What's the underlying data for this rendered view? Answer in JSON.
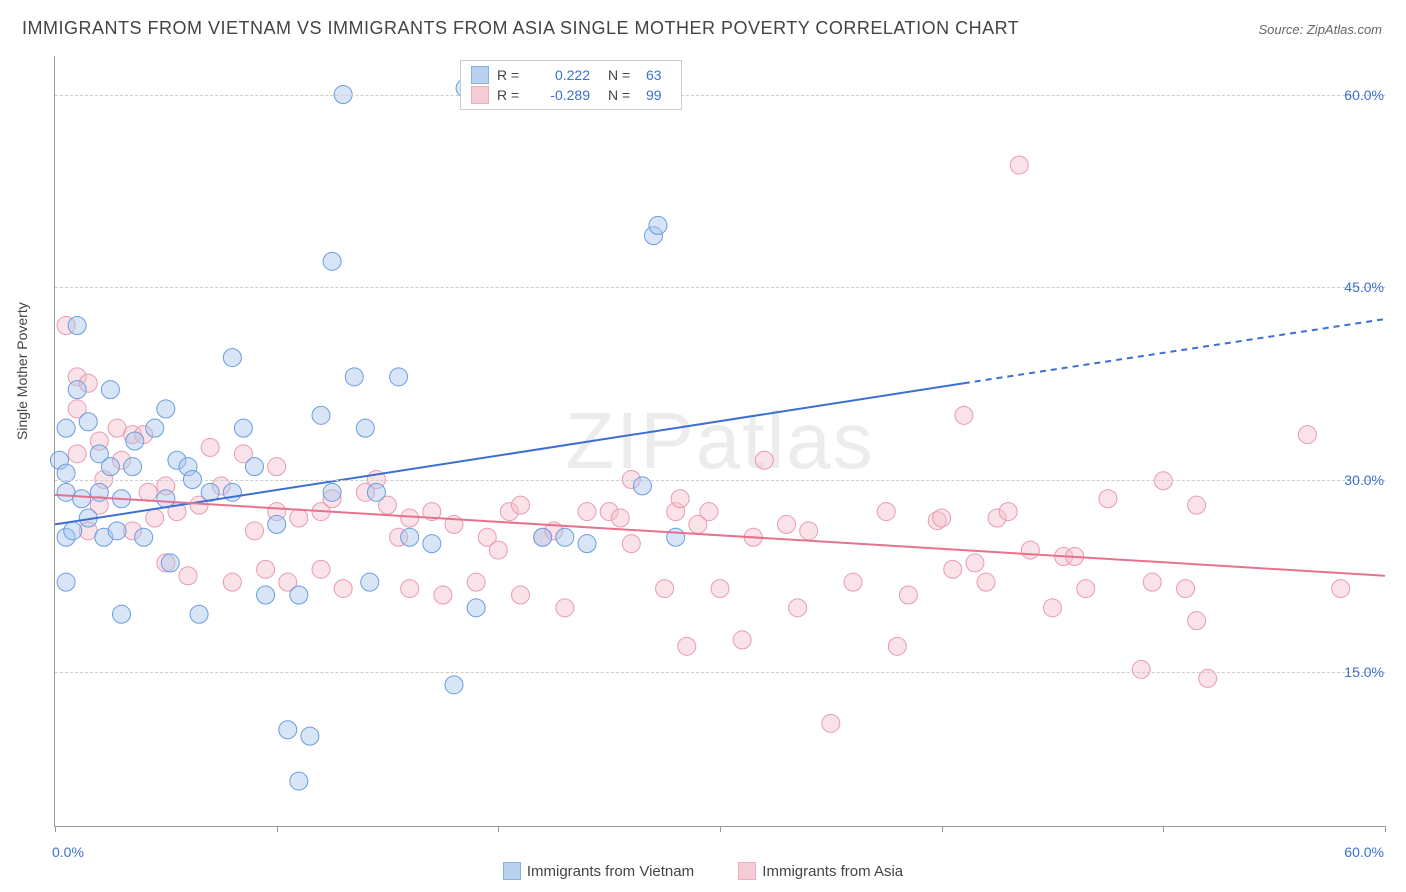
{
  "title": "IMMIGRANTS FROM VIETNAM VS IMMIGRANTS FROM ASIA SINGLE MOTHER POVERTY CORRELATION CHART",
  "source": "Source: ZipAtlas.com",
  "watermark": "ZIPatlas",
  "yaxis_label": "Single Mother Poverty",
  "chart": {
    "type": "scatter",
    "xlim": [
      0,
      60
    ],
    "ylim": [
      3,
      63
    ],
    "x_start_label": "0.0%",
    "x_end_label": "60.0%",
    "x_tick_positions": [
      0,
      10,
      20,
      30,
      40,
      50,
      60
    ],
    "y_gridlines": [
      15,
      30,
      45,
      60
    ],
    "y_tick_labels": [
      "15.0%",
      "30.0%",
      "45.0%",
      "60.0%"
    ],
    "background_color": "#ffffff",
    "grid_color": "#cccccc",
    "axis_color": "#999999",
    "tick_label_color": "#3b6fd4"
  },
  "series": [
    {
      "name": "Immigrants from Vietnam",
      "color_fill": "#a8c5ec",
      "color_stroke": "#6a9de0",
      "fill_opacity": 0.45,
      "r_value": "0.222",
      "n_value": "63",
      "trend": {
        "x1": 0,
        "y1": 26.5,
        "x2": 41,
        "y2": 37.5,
        "x2_ext": 60,
        "y2_ext": 42.5,
        "stroke": "#3b6fd4",
        "width": 2
      },
      "points": [
        [
          0.2,
          31.5
        ],
        [
          0.5,
          34
        ],
        [
          0.5,
          22
        ],
        [
          0.5,
          29
        ],
        [
          0.5,
          25.5
        ],
        [
          0.5,
          30.5
        ],
        [
          0.8,
          26
        ],
        [
          1,
          42
        ],
        [
          1,
          37
        ],
        [
          1.2,
          28.5
        ],
        [
          1.5,
          34.5
        ],
        [
          1.5,
          27
        ],
        [
          2,
          32
        ],
        [
          2,
          29
        ],
        [
          2.2,
          25.5
        ],
        [
          2.5,
          31
        ],
        [
          2.5,
          37
        ],
        [
          2.8,
          26
        ],
        [
          3,
          28.5
        ],
        [
          3,
          19.5
        ],
        [
          3.5,
          31
        ],
        [
          3.6,
          33
        ],
        [
          4,
          25.5
        ],
        [
          4.5,
          34
        ],
        [
          5,
          35.5
        ],
        [
          5,
          28.5
        ],
        [
          5.2,
          23.5
        ],
        [
          5.5,
          31.5
        ],
        [
          6,
          31
        ],
        [
          6.2,
          30
        ],
        [
          6.5,
          19.5
        ],
        [
          7,
          29
        ],
        [
          8,
          39.5
        ],
        [
          8,
          29
        ],
        [
          8.5,
          34
        ],
        [
          9,
          31
        ],
        [
          9.5,
          21
        ],
        [
          10,
          26.5
        ],
        [
          10.5,
          10.5
        ],
        [
          11,
          21
        ],
        [
          11,
          6.5
        ],
        [
          11.5,
          10
        ],
        [
          12,
          35
        ],
        [
          12.5,
          47
        ],
        [
          12.5,
          29
        ],
        [
          13,
          60
        ],
        [
          13.5,
          38
        ],
        [
          14,
          34
        ],
        [
          14.2,
          22
        ],
        [
          14.5,
          29
        ],
        [
          15.5,
          38
        ],
        [
          16,
          25.5
        ],
        [
          17,
          25
        ],
        [
          18,
          14
        ],
        [
          18.5,
          60.5
        ],
        [
          19,
          20
        ],
        [
          22,
          25.5
        ],
        [
          23,
          25.5
        ],
        [
          24,
          25
        ],
        [
          26.5,
          29.5
        ],
        [
          27,
          49
        ],
        [
          27.2,
          49.8
        ],
        [
          28,
          25.5
        ]
      ]
    },
    {
      "name": "Immigrants from Asia",
      "color_fill": "#f4c0cc",
      "color_stroke": "#ea9ab2",
      "fill_opacity": 0.45,
      "r_value": "-0.289",
      "n_value": "99",
      "trend": {
        "x1": 0,
        "y1": 28.8,
        "x2": 60,
        "y2": 22.5,
        "stroke": "#e8718f",
        "width": 2
      },
      "points": [
        [
          0.5,
          42
        ],
        [
          1,
          32
        ],
        [
          1,
          35.5
        ],
        [
          1,
          38
        ],
        [
          1.5,
          37.5
        ],
        [
          1.5,
          26
        ],
        [
          2,
          33
        ],
        [
          2,
          28
        ],
        [
          2.2,
          30
        ],
        [
          2.8,
          34
        ],
        [
          3,
          31.5
        ],
        [
          3.5,
          26
        ],
        [
          3.5,
          33.5
        ],
        [
          4,
          33.5
        ],
        [
          4.2,
          29
        ],
        [
          4.5,
          27
        ],
        [
          5,
          29.5
        ],
        [
          5,
          23.5
        ],
        [
          5.5,
          27.5
        ],
        [
          6,
          22.5
        ],
        [
          6.5,
          28
        ],
        [
          7,
          32.5
        ],
        [
          7.5,
          29.5
        ],
        [
          8,
          22
        ],
        [
          8.5,
          32
        ],
        [
          9,
          26
        ],
        [
          9.5,
          23
        ],
        [
          10,
          31
        ],
        [
          10,
          27.5
        ],
        [
          10.5,
          22
        ],
        [
          11,
          27
        ],
        [
          12,
          27.5
        ],
        [
          12,
          23
        ],
        [
          12.5,
          28.5
        ],
        [
          13,
          21.5
        ],
        [
          14,
          29
        ],
        [
          14.5,
          30
        ],
        [
          15,
          28
        ],
        [
          15.5,
          25.5
        ],
        [
          16,
          21.5
        ],
        [
          16,
          27
        ],
        [
          17,
          27.5
        ],
        [
          17.5,
          21
        ],
        [
          18,
          26.5
        ],
        [
          19,
          22
        ],
        [
          19.5,
          25.5
        ],
        [
          20,
          24.5
        ],
        [
          20.5,
          27.5
        ],
        [
          21,
          28
        ],
        [
          21,
          21
        ],
        [
          22,
          25.5
        ],
        [
          22.5,
          26
        ],
        [
          23,
          20
        ],
        [
          24,
          27.5
        ],
        [
          25,
          27.5
        ],
        [
          25.5,
          27
        ],
        [
          26,
          25
        ],
        [
          26,
          30
        ],
        [
          27.5,
          21.5
        ],
        [
          28,
          27.5
        ],
        [
          28.2,
          28.5
        ],
        [
          28.5,
          17
        ],
        [
          29,
          26.5
        ],
        [
          29.5,
          27.5
        ],
        [
          30,
          21.5
        ],
        [
          31,
          17.5
        ],
        [
          31.5,
          25.5
        ],
        [
          32,
          31.5
        ],
        [
          33,
          26.5
        ],
        [
          33.5,
          20
        ],
        [
          34,
          26
        ],
        [
          35,
          11
        ],
        [
          36,
          22
        ],
        [
          37.5,
          27.5
        ],
        [
          38,
          17
        ],
        [
          38.5,
          21
        ],
        [
          39.8,
          26.8
        ],
        [
          40,
          27
        ],
        [
          40.5,
          23
        ],
        [
          41,
          35
        ],
        [
          41.5,
          23.5
        ],
        [
          42,
          22
        ],
        [
          42.5,
          27
        ],
        [
          43,
          27.5
        ],
        [
          43.5,
          54.5
        ],
        [
          44,
          24.5
        ],
        [
          45,
          20
        ],
        [
          45.5,
          24
        ],
        [
          46,
          24
        ],
        [
          46.5,
          21.5
        ],
        [
          47.5,
          28.5
        ],
        [
          49,
          15.2
        ],
        [
          49.5,
          22
        ],
        [
          50,
          29.9
        ],
        [
          51,
          21.5
        ],
        [
          51.5,
          19
        ],
        [
          51.5,
          28
        ],
        [
          52,
          14.5
        ],
        [
          56.5,
          33.5
        ],
        [
          58,
          21.5
        ]
      ]
    }
  ],
  "legend_top": {
    "r_label": "R =",
    "n_label": "N ="
  },
  "legend_bottom_labels": [
    "Immigrants from Vietnam",
    "Immigrants from Asia"
  ]
}
